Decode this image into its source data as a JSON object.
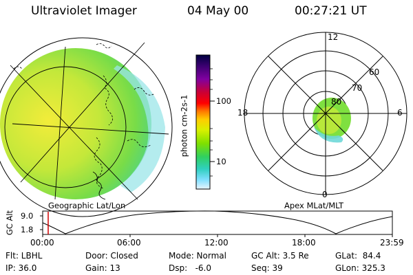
{
  "header": {
    "title": "Ultraviolet Imager",
    "date": "04 May 00",
    "time": "00:27:21 UT"
  },
  "geo_panel": {
    "label": "Geographic Lat/Lon"
  },
  "colorbar": {
    "unit_label": "photon cm-2s-1",
    "ticks": [
      "100",
      "10"
    ],
    "colors": [
      "#000040",
      "#3a0070",
      "#8000a0",
      "#cc0033",
      "#ff0000",
      "#ff7a00",
      "#ffcc00",
      "#d8f000",
      "#7fe000",
      "#30d060",
      "#30d0c0",
      "#80e0ff",
      "#e8f4ff"
    ]
  },
  "polar_panel": {
    "label": "Apex MLat/MLT",
    "mlt_labels": {
      "top": "12",
      "left": "18",
      "right": "6",
      "bottom": "0"
    },
    "lat_labels": [
      "60",
      "70",
      "80"
    ]
  },
  "altitude_plot": {
    "ylabel": "GC Alt",
    "y_ticks": [
      "9.0",
      "1.8"
    ],
    "x_ticks": [
      "00:00",
      "06:00",
      "12:00",
      "18:00",
      "23:59"
    ],
    "marker_color": "#d00000"
  },
  "status": {
    "row1": {
      "filter": "Flt: LBHL",
      "door": "Door: Closed",
      "mode": "Mode: Normal",
      "gc_alt": "GC Alt: 3.5 Re",
      "glat": "GLat:  84.4"
    },
    "row2": {
      "ip": "IP: 36.0",
      "gain": "Gain: 13",
      "dsp": "Dsp:   -6.0",
      "seq": "Seq: 39",
      "glon": "GLon: 325.3"
    }
  }
}
